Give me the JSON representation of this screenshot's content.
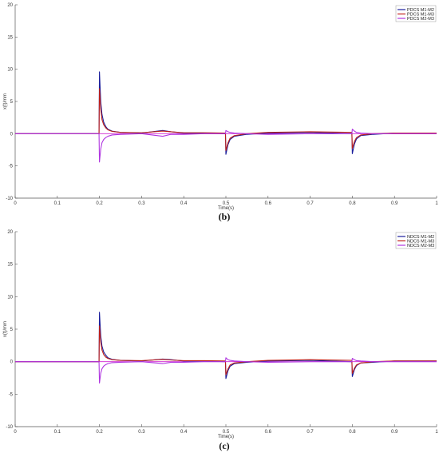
{
  "captions": [
    "(b)",
    "(c)"
  ],
  "colors": {
    "series_1": "#1c1f9c",
    "series_2": "#c0201a",
    "series_3": "#b035e0",
    "axis": "#555555",
    "zero_line": "#d020d0"
  },
  "chart_data": [
    {
      "type": "line",
      "title": "",
      "xlabel": "Time(s)",
      "ylabel": "x(t)/mm",
      "xlim": [
        0,
        1
      ],
      "ylim": [
        -10,
        20
      ],
      "xticks": [
        "0",
        "0.1",
        "0.2",
        "0.3",
        "0.4",
        "0.5",
        "0.6",
        "0.7",
        "0.8",
        "0.9",
        "1"
      ],
      "yticks": [
        "-10",
        "-5",
        "0",
        "5",
        "10",
        "15",
        "20"
      ],
      "grid": false,
      "legend_position": "top-right",
      "series": [
        {
          "name": "PDCS M1-M2",
          "color": "#1c1f9c",
          "x": [
            0,
            0.199,
            0.2,
            0.203,
            0.206,
            0.21,
            0.215,
            0.22,
            0.23,
            0.25,
            0.3,
            0.35,
            0.37,
            0.4,
            0.45,
            0.499,
            0.5,
            0.505,
            0.51,
            0.52,
            0.55,
            0.6,
            0.7,
            0.799,
            0.8,
            0.805,
            0.81,
            0.82,
            0.85,
            0.9,
            1
          ],
          "y": [
            0,
            0,
            9.6,
            5,
            3,
            1.8,
            1.1,
            0.7,
            0.4,
            0.2,
            0.1,
            0.5,
            0.3,
            0.1,
            0.1,
            0,
            -3.2,
            -1.7,
            -0.9,
            -0.4,
            -0.1,
            0.1,
            0.2,
            0,
            -3.1,
            -1.6,
            -0.8,
            -0.3,
            -0.1,
            0.1,
            0.1
          ]
        },
        {
          "name": "PDCS M1-M3",
          "color": "#c0201a",
          "x": [
            0,
            0.199,
            0.2,
            0.203,
            0.206,
            0.21,
            0.215,
            0.22,
            0.23,
            0.25,
            0.3,
            0.35,
            0.37,
            0.4,
            0.45,
            0.499,
            0.5,
            0.505,
            0.51,
            0.52,
            0.55,
            0.6,
            0.7,
            0.799,
            0.8,
            0.805,
            0.81,
            0.82,
            0.85,
            0.9,
            1
          ],
          "y": [
            0,
            0,
            7,
            3.8,
            2.2,
            1.4,
            0.9,
            0.6,
            0.35,
            0.2,
            0.15,
            0.4,
            0.3,
            0.15,
            0.15,
            0.1,
            -2.6,
            -1.4,
            -0.7,
            -0.3,
            0,
            0.2,
            0.3,
            0.2,
            -2.3,
            -1.2,
            -0.6,
            -0.2,
            0,
            0.1,
            0.1
          ]
        },
        {
          "name": "PDCS M2-M3",
          "color": "#b035e0",
          "x": [
            0,
            0.199,
            0.2,
            0.203,
            0.206,
            0.21,
            0.215,
            0.22,
            0.23,
            0.25,
            0.3,
            0.35,
            0.37,
            0.4,
            0.45,
            0.499,
            0.5,
            0.505,
            0.51,
            0.52,
            0.55,
            0.6,
            0.7,
            0.799,
            0.8,
            0.805,
            0.81,
            0.82,
            0.85,
            0.9,
            1
          ],
          "y": [
            0,
            0,
            -4.4,
            -2.4,
            -1.4,
            -0.9,
            -0.6,
            -0.4,
            -0.2,
            -0.1,
            0,
            -0.4,
            -0.1,
            -0.1,
            0,
            0,
            0.5,
            0.3,
            0.2,
            0.1,
            0,
            -0.1,
            0,
            0,
            0.7,
            0.4,
            0.2,
            0.1,
            0,
            0,
            0
          ]
        }
      ]
    },
    {
      "type": "line",
      "title": "",
      "xlabel": "Time(s)",
      "ylabel": "x(t)/mm",
      "xlim": [
        0,
        1
      ],
      "ylim": [
        -10,
        20
      ],
      "xticks": [
        "0",
        "0.1",
        "0.2",
        "0.3",
        "0.4",
        "0.5",
        "0.6",
        "0.7",
        "0.8",
        "0.9",
        "1"
      ],
      "yticks": [
        "-10",
        "-5",
        "0",
        "5",
        "10",
        "15",
        "20"
      ],
      "grid": false,
      "legend_position": "top-right",
      "series": [
        {
          "name": "NDCS M1-M2",
          "color": "#1c1f9c",
          "x": [
            0,
            0.199,
            0.2,
            0.203,
            0.206,
            0.21,
            0.215,
            0.22,
            0.23,
            0.25,
            0.3,
            0.35,
            0.37,
            0.4,
            0.45,
            0.499,
            0.5,
            0.505,
            0.51,
            0.52,
            0.55,
            0.6,
            0.7,
            0.799,
            0.8,
            0.805,
            0.81,
            0.82,
            0.85,
            0.9,
            1
          ],
          "y": [
            0,
            0,
            7.6,
            4,
            2.4,
            1.5,
            1,
            0.6,
            0.35,
            0.2,
            0.1,
            0.4,
            0.3,
            0.1,
            0.1,
            0,
            -2.6,
            -1.4,
            -0.7,
            -0.3,
            -0.1,
            0.1,
            0.2,
            0,
            -2.3,
            -1.2,
            -0.6,
            -0.2,
            -0.1,
            0.1,
            0.1
          ]
        },
        {
          "name": "NDCS M1-M3",
          "color": "#c0201a",
          "x": [
            0,
            0.199,
            0.2,
            0.203,
            0.206,
            0.21,
            0.215,
            0.22,
            0.23,
            0.25,
            0.3,
            0.35,
            0.37,
            0.4,
            0.45,
            0.499,
            0.5,
            0.505,
            0.51,
            0.52,
            0.55,
            0.6,
            0.7,
            0.799,
            0.8,
            0.805,
            0.81,
            0.82,
            0.85,
            0.9,
            1
          ],
          "y": [
            0,
            0,
            5.5,
            3,
            1.8,
            1.1,
            0.7,
            0.5,
            0.3,
            0.2,
            0.15,
            0.35,
            0.25,
            0.15,
            0.15,
            0.1,
            -2,
            -1.1,
            -0.5,
            -0.2,
            0,
            0.2,
            0.3,
            0.2,
            -1.8,
            -1,
            -0.5,
            -0.2,
            0,
            0.1,
            0.1
          ]
        },
        {
          "name": "NDCS M2-M3",
          "color": "#b035e0",
          "x": [
            0,
            0.199,
            0.2,
            0.203,
            0.206,
            0.21,
            0.215,
            0.22,
            0.23,
            0.25,
            0.3,
            0.35,
            0.37,
            0.4,
            0.45,
            0.499,
            0.5,
            0.505,
            0.51,
            0.52,
            0.55,
            0.6,
            0.7,
            0.799,
            0.8,
            0.805,
            0.81,
            0.82,
            0.85,
            0.9,
            1
          ],
          "y": [
            0,
            0,
            -3.3,
            -1.8,
            -1.1,
            -0.7,
            -0.45,
            -0.3,
            -0.15,
            -0.1,
            0,
            -0.3,
            -0.1,
            -0.1,
            0,
            0,
            0.6,
            0.3,
            0.2,
            0.1,
            0,
            -0.1,
            0,
            0,
            0.5,
            0.3,
            0.15,
            0.1,
            0,
            0,
            0
          ]
        }
      ]
    }
  ]
}
